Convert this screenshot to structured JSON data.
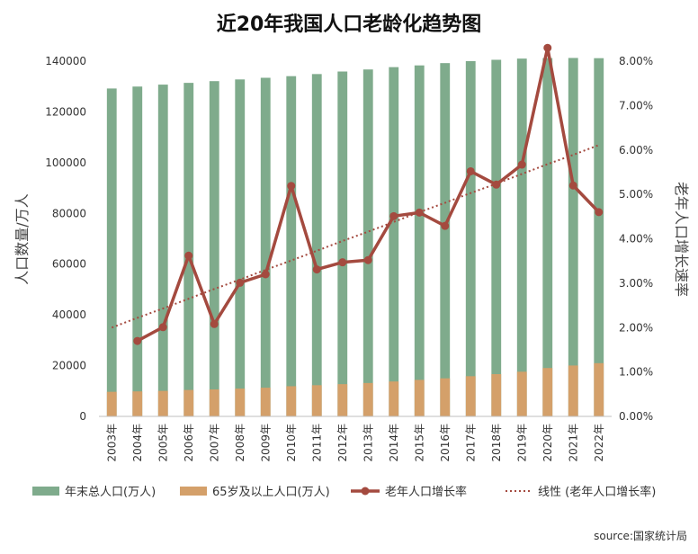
{
  "chart_data": {
    "type": "bar",
    "title": "近20年我国人口老龄化趋势图",
    "ylabel": "人口数量/万人",
    "y2label": "老年人口增长速率",
    "ylim": [
      0,
      140000
    ],
    "yticks": [
      0,
      20000,
      40000,
      60000,
      80000,
      100000,
      120000,
      140000
    ],
    "y2lim": [
      0,
      8
    ],
    "y2ticks": [
      "0.00%",
      "1.00%",
      "2.00%",
      "3.00%",
      "4.00%",
      "5.00%",
      "6.00%",
      "7.00%",
      "8.00%"
    ],
    "categories": [
      "2003年",
      "2004年",
      "2005年",
      "2006年",
      "2007年",
      "2008年",
      "2009年",
      "2010年",
      "2011年",
      "2012年",
      "2013年",
      "2014年",
      "2015年",
      "2016年",
      "2017年",
      "2018年",
      "2019年",
      "2020年",
      "2021年",
      "2022年"
    ],
    "series": [
      {
        "name": "年末总人口(万人)",
        "kind": "bar",
        "color": "#7fab8c",
        "values": [
          129227,
          129988,
          130756,
          131448,
          132129,
          132802,
          133450,
          134091,
          134916,
          135922,
          136726,
          137646,
          138326,
          139232,
          140011,
          140541,
          141008,
          141212,
          141260,
          141175
        ]
      },
      {
        "name": "65岁及以上人口(万人)",
        "kind": "bar",
        "color": "#d4a06a",
        "values": [
          9692,
          9857,
          10055,
          10419,
          10636,
          10956,
          11307,
          11894,
          12288,
          12714,
          13161,
          13755,
          14386,
          15003,
          15831,
          16658,
          17603,
          19064,
          20056,
          20978
        ]
      },
      {
        "name": "老年人口增长率",
        "kind": "line",
        "axis": "right",
        "color": "#a44a3f",
        "values": [
          null,
          1.7,
          2.01,
          3.62,
          2.08,
          3.01,
          3.2,
          5.19,
          3.31,
          3.47,
          3.52,
          4.51,
          4.59,
          4.29,
          5.52,
          5.22,
          5.67,
          8.3,
          5.2,
          4.6
        ]
      },
      {
        "name": "线性 (老年人口增长率)",
        "kind": "trend",
        "axis": "right",
        "color": "#a44a3f",
        "values": [
          2.0,
          2.22,
          2.43,
          2.65,
          2.87,
          3.08,
          3.3,
          3.51,
          3.73,
          3.95,
          4.16,
          4.38,
          4.6,
          4.81,
          5.03,
          5.24,
          5.46,
          5.68,
          5.89,
          6.11
        ]
      }
    ],
    "legend_position": "bottom",
    "grid": false,
    "source": "source:国家统计局"
  }
}
